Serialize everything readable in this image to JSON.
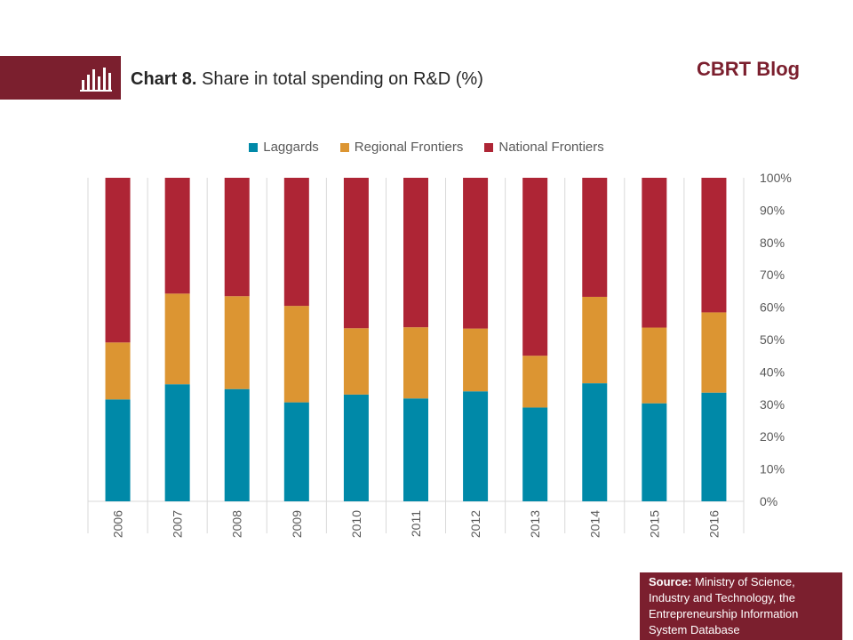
{
  "header": {
    "title_bold": "Chart 8.",
    "title_rest": " Share in total spending on R&D (%)",
    "blog_name": "CBRT Blog",
    "accent_color": "#7b1f2e",
    "icon": "bar-chart-icon"
  },
  "source": {
    "label": "Source:",
    "text": " Ministry of Science, Industry and Technology, the Entrepreneurship Information System Database"
  },
  "chart_data": {
    "type": "bar",
    "stacked": true,
    "categories": [
      "2006",
      "2007",
      "2008",
      "2009",
      "2010",
      "2011",
      "2012",
      "2013",
      "2014",
      "2015",
      "2016"
    ],
    "series": [
      {
        "name": "Laggards",
        "color": "#0089a8",
        "values": [
          31.5,
          36.2,
          34.7,
          30.6,
          33.0,
          31.8,
          34.0,
          29.0,
          36.5,
          30.3,
          33.6
        ]
      },
      {
        "name": "Regional Frontiers",
        "color": "#dc9532",
        "values": [
          17.6,
          28.0,
          28.7,
          29.8,
          20.5,
          22.0,
          19.4,
          16.0,
          26.7,
          23.4,
          24.8
        ]
      },
      {
        "name": "National Frontiers",
        "color": "#ae2535",
        "values": [
          50.9,
          35.8,
          36.6,
          39.6,
          46.5,
          46.2,
          46.6,
          55.0,
          36.8,
          46.3,
          41.6
        ]
      }
    ],
    "ylim": [
      0,
      100
    ],
    "yticks": [
      "0%",
      "10%",
      "20%",
      "30%",
      "40%",
      "50%",
      "60%",
      "70%",
      "80%",
      "90%",
      "100%"
    ],
    "y_axis_side": "right",
    "legend": "top-center",
    "grid": "vertical-separators"
  }
}
